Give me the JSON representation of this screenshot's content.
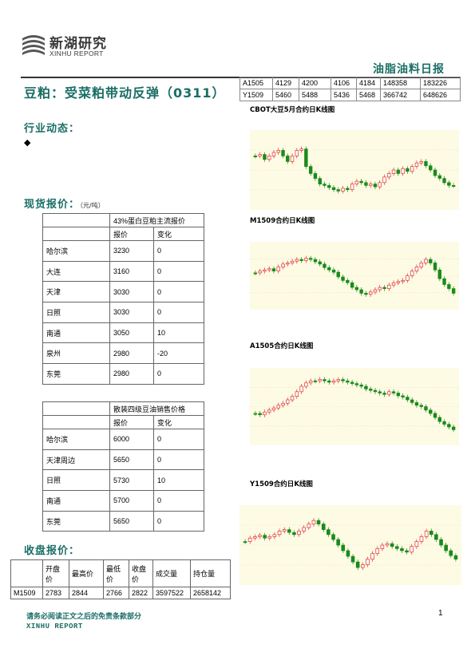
{
  "header": {
    "logo_cn": "新湖研究",
    "logo_en": "XINHU REPORT",
    "report_title": "油脂油料日报"
  },
  "main_title": "豆粕：受菜粕带动反弹（0311）",
  "top_table": [
    [
      "A1505",
      "4129",
      "4200",
      "4106",
      "4184",
      "148358",
      "183226"
    ],
    [
      "Y1509",
      "5460",
      "5488",
      "5436",
      "5468",
      "366742",
      "648626"
    ]
  ],
  "sections": {
    "industry": "行业动态：",
    "bullet": "◆",
    "spot": "现货报价：",
    "spot_unit": "（元/吨）",
    "closing": "收盘报价："
  },
  "spot_table_1": {
    "caption": "43%蛋白豆粕主流报价",
    "headers": [
      "报价",
      "变化"
    ],
    "rows": [
      [
        "哈尔滨",
        "3230",
        "0"
      ],
      [
        "大连",
        "3160",
        "0"
      ],
      [
        "天津",
        "3030",
        "0"
      ],
      [
        "日照",
        "3030",
        "0"
      ],
      [
        "南通",
        "3050",
        "10"
      ],
      [
        "泉州",
        "2980",
        "-20"
      ],
      [
        "东莞",
        "2980",
        "0"
      ]
    ]
  },
  "spot_table_2": {
    "caption": "散装四级豆油销售价格",
    "headers": [
      "报价",
      "变化"
    ],
    "rows": [
      [
        "哈尔滨",
        "6000",
        "0"
      ],
      [
        "天津周边",
        "5650",
        "0"
      ],
      [
        "日照",
        "5730",
        "10"
      ],
      [
        "南通",
        "5700",
        "0"
      ],
      [
        "东莞",
        "5650",
        "0"
      ]
    ]
  },
  "closing_table": {
    "headers": [
      "",
      "开盘价",
      "最高价",
      "最低价",
      "收盘价",
      "成交量",
      "持仓量"
    ],
    "rows": [
      [
        "M1509",
        "2783",
        "2844",
        "2766",
        "2822",
        "3597522",
        "2658142"
      ]
    ]
  },
  "charts": [
    {
      "label": "CBOT大豆5月合约日K线图"
    },
    {
      "label": "M1509合约日K线图"
    },
    {
      "label": "A1505合约日K线图"
    },
    {
      "label": "Y1509合约日K线图"
    }
  ],
  "footer": {
    "note": "请务必阅读正文之后的免责条款部分",
    "en": "XINHU REPORT",
    "page": "1"
  },
  "colors": {
    "accent": "#1a6e66",
    "up": "#e03030",
    "down": "#1a8a1a",
    "chart_bg": "#fdfbe4"
  }
}
